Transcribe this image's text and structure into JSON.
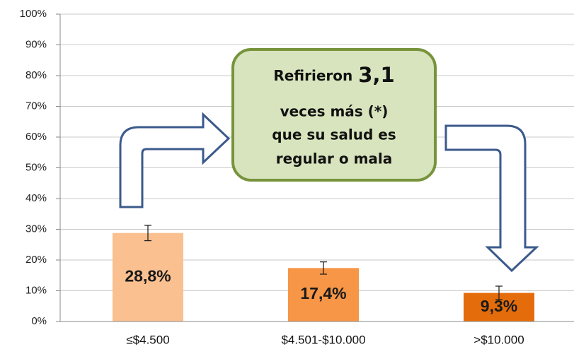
{
  "chart_data": {
    "type": "bar",
    "categories": [
      "≤$4.500",
      "$4.501-$10.000",
      ">$10.000"
    ],
    "values": [
      28.8,
      17.4,
      9.3
    ],
    "value_labels": [
      "28,8%",
      "17,4%",
      "9,3%"
    ],
    "errors": [
      2.5,
      2.0,
      2.2
    ],
    "colors": [
      "#fac090",
      "#f79646",
      "#e46c0a"
    ],
    "ylim": [
      0,
      100
    ],
    "yticks": [
      {
        "value": 0,
        "label": "0%"
      },
      {
        "value": 10,
        "label": "10%"
      },
      {
        "value": 20,
        "label": "20%"
      },
      {
        "value": 30,
        "label": "30%"
      },
      {
        "value": 40,
        "label": "40%"
      },
      {
        "value": 50,
        "label": "50%"
      },
      {
        "value": 60,
        "label": "60%"
      },
      {
        "value": 70,
        "label": "70%"
      },
      {
        "value": 80,
        "label": "80%"
      },
      {
        "value": 90,
        "label": "90%"
      },
      {
        "value": 100,
        "label": "100%"
      }
    ],
    "grid": true,
    "annotation": [
      "Refirieron",
      "3,1",
      "veces más (*)",
      "que su salud es",
      "regular o mala"
    ]
  }
}
